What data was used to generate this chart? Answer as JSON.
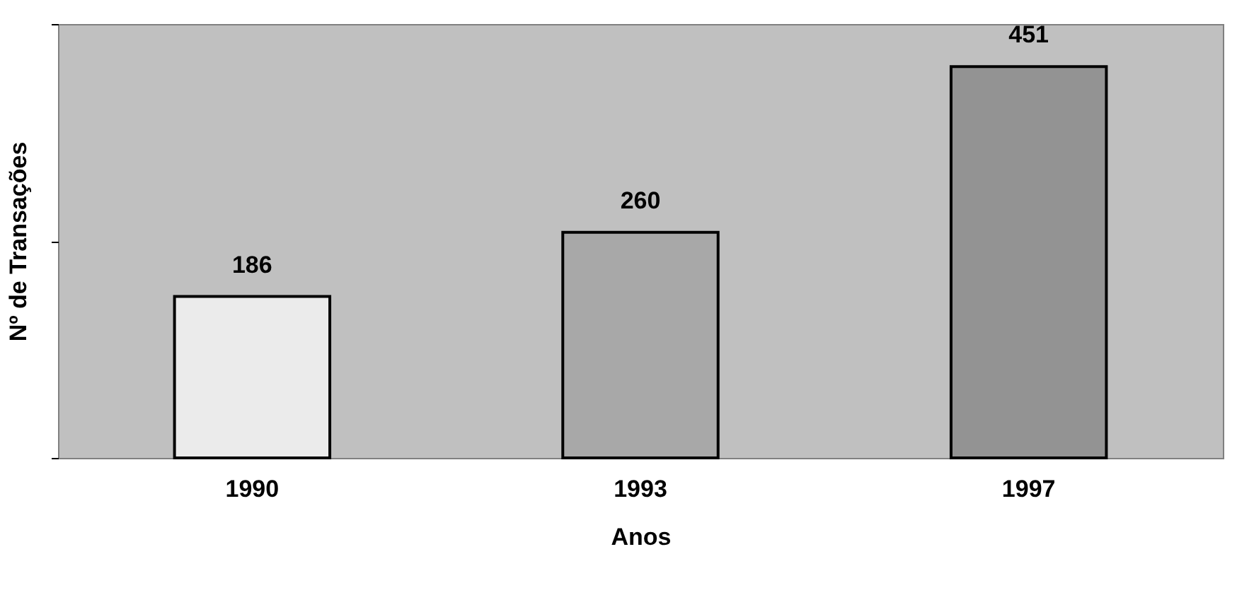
{
  "chart_data": {
    "type": "bar",
    "xlabel": "Anos",
    "ylabel": "Nº de Transações",
    "categories": [
      "1990",
      "1993",
      "1997"
    ],
    "values": [
      186,
      260,
      451
    ],
    "colors": [
      "#ebebeb",
      "#a8a8a8",
      "#939393"
    ],
    "ylim": [
      0,
      500
    ],
    "yticks": [
      {
        "value": 0,
        "label": null
      },
      {
        "value": 250,
        "label": null
      },
      {
        "value": 500,
        "label": null
      }
    ],
    "data_labels": true,
    "grid": false
  }
}
